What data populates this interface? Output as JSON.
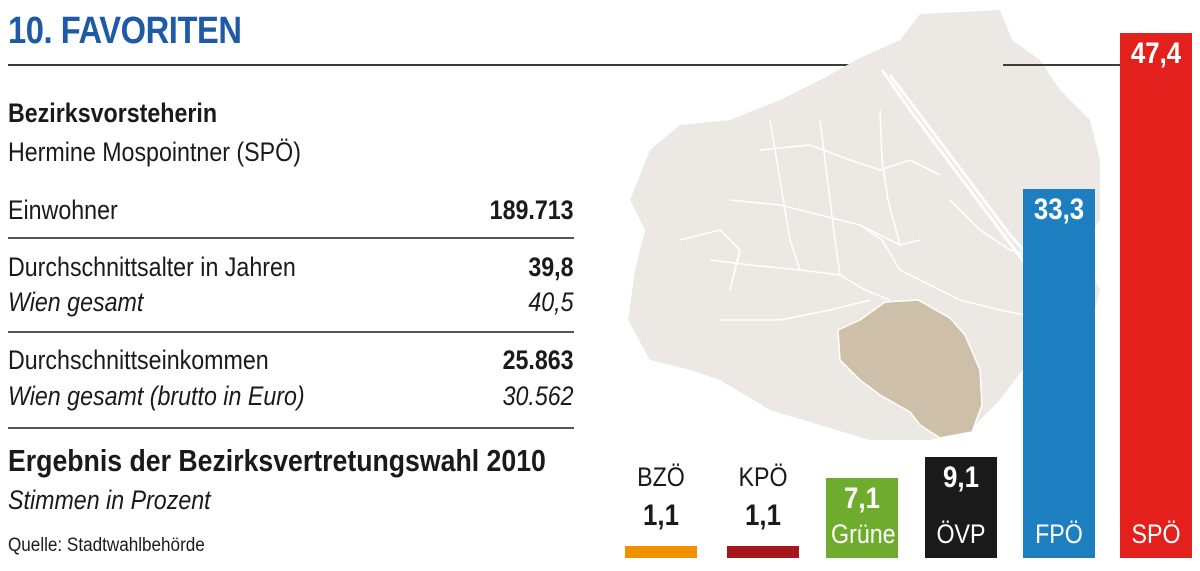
{
  "header": {
    "title": "10. FAVORITEN"
  },
  "info": {
    "head_label": "Bezirksvorsteherin",
    "head_name": "Hermine Mospointner (SPÖ)",
    "residents_label": "Einwohner",
    "residents_value": "189.713",
    "age_label": "Durchschnittsalter in Jahren",
    "age_value": "39,8",
    "age_vienna_label": "Wien gesamt",
    "age_vienna_value": "40,5",
    "income_label": "Durchschnittseinkommen",
    "income_value": "25.863",
    "income_vienna_label": "Wien gesamt (brutto in Euro)",
    "income_vienna_value": "30.562"
  },
  "election": {
    "title": "Ergebnis der Bezirksvertretungswahl 2010",
    "subtitle": "Stimmen in Prozent"
  },
  "source": "Quelle: Stadtwahlbehörde",
  "colors": {
    "title": "#1f5aa6",
    "map_base": "#ece9e4",
    "map_highlight": "#cdbfa8",
    "map_lines": "#ffffff"
  },
  "chart_data": {
    "type": "bar",
    "title": "Ergebnis der Bezirksvertretungswahl 2010",
    "subtitle": "Stimmen in Prozent",
    "categories": [
      "BZÖ",
      "KPÖ",
      "Grüne",
      "ÖVP",
      "FPÖ",
      "SPÖ"
    ],
    "values": [
      1.1,
      1.1,
      7.1,
      9.1,
      33.3,
      47.4
    ],
    "labels": [
      "1,1",
      "1,1",
      "7,1",
      "9,1",
      "33,3",
      "47,4"
    ],
    "colors": [
      "#f39200",
      "#a6151b",
      "#6fac2e",
      "#1a1a1a",
      "#1e7fc0",
      "#e3201b"
    ],
    "unit": "%"
  }
}
